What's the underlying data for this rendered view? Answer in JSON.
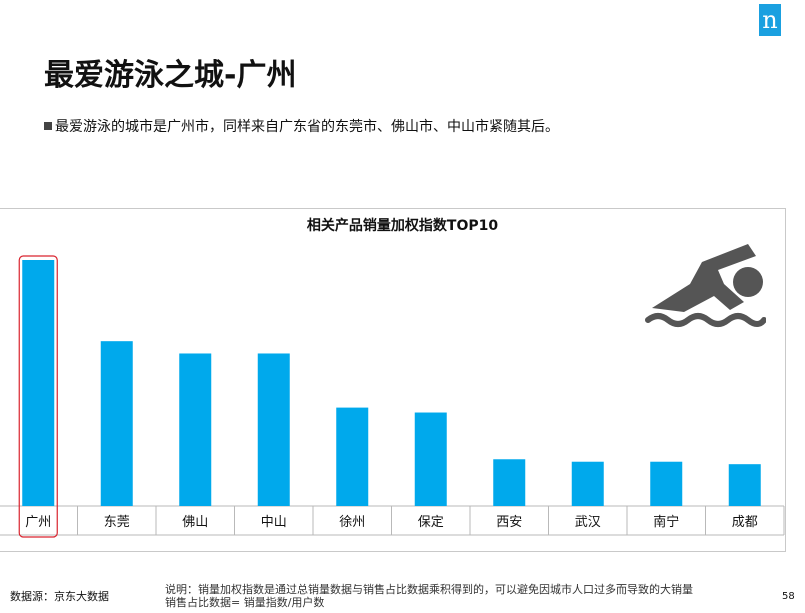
{
  "logo": {
    "letter": "n"
  },
  "header": {
    "title": "最爱游泳之城-广州",
    "bullet": "最爱游泳的城市是广州市，同样来自广东省的东莞市、佛山市、中山市紧随其后。"
  },
  "chart_data": {
    "type": "bar",
    "title": "相关产品销量加权指数TOP10",
    "categories": [
      "广州",
      "东莞",
      "佛山",
      "中山",
      "徐州",
      "保定",
      "西安",
      "武汉",
      "南宁",
      "成都"
    ],
    "values": [
      100,
      67,
      62,
      62,
      40,
      38,
      19,
      18,
      18,
      17
    ],
    "highlight": "广州",
    "colors": {
      "bar": "#00a9ec",
      "highlight_box": "#d9232e",
      "icon": "#555555"
    },
    "ylim": [
      0,
      100
    ],
    "grid": false,
    "icon": "swimmer-icon"
  },
  "footer": {
    "source": "数据源：京东大数据",
    "note_line1": "说明：销量加权指数是通过总销量数据与销售占比数据乘积得到的，可以避免因城市人口过多而导致的大销量",
    "note_line2": "销售占比数据= 销量指数/用户数",
    "page": "58"
  }
}
